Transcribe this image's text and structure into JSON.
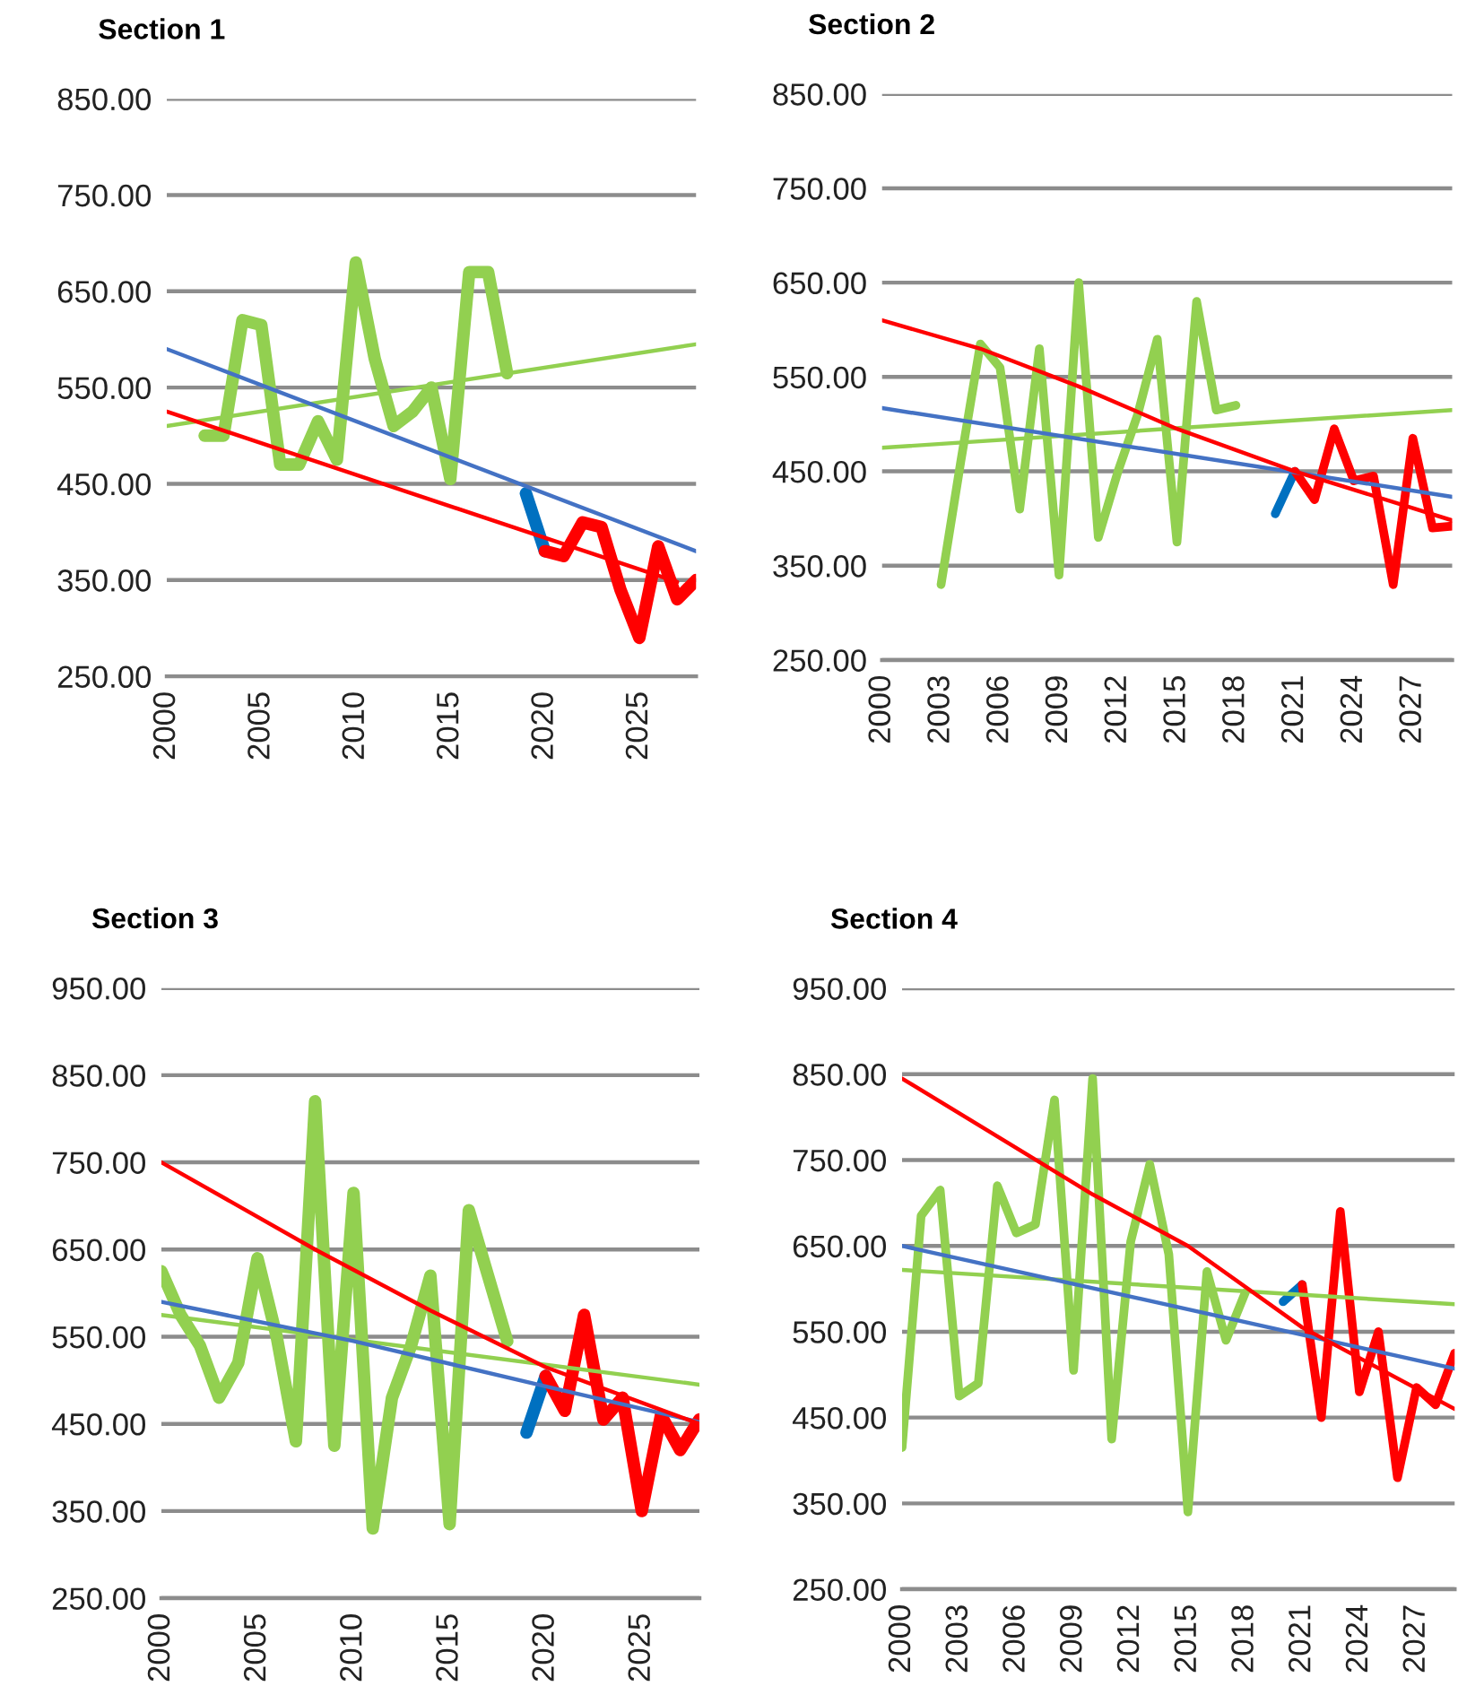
{
  "chart_data": [
    {
      "type": "line",
      "title": "Section 1",
      "x": [
        2002,
        2003,
        2004,
        2005,
        2006,
        2007,
        2008,
        2009,
        2010,
        2011,
        2012,
        2013,
        2014,
        2015,
        2016,
        2017,
        2018,
        2019,
        2020,
        2021,
        2022,
        2023,
        2024,
        2025,
        2026,
        2027,
        2028
      ],
      "xlim": [
        2000,
        2028
      ],
      "xticks": [
        2000,
        2005,
        2010,
        2015,
        2020,
        2025
      ],
      "ylim": [
        250,
        850
      ],
      "yticks": [
        {
          "value": 250,
          "label": "250.00"
        },
        {
          "value": 350,
          "label": "350.00"
        },
        {
          "value": 450,
          "label": "450.00"
        },
        {
          "value": 550,
          "label": "550.00"
        },
        {
          "value": 650,
          "label": "650.00"
        },
        {
          "value": 750,
          "label": "750.00"
        },
        {
          "value": 850,
          "label": "850.00"
        }
      ],
      "grid": "y",
      "legend": false,
      "series": [
        {
          "color": "#92d050",
          "values": [
            500,
            500,
            620,
            615,
            470,
            470,
            515,
            475,
            680,
            580,
            510,
            525,
            550,
            455,
            670,
            670,
            565,
            null,
            null,
            null,
            null,
            null,
            null,
            null,
            null,
            null,
            null
          ]
        },
        {
          "color": "#0070c0",
          "values": [
            null,
            null,
            null,
            null,
            null,
            null,
            null,
            null,
            null,
            null,
            null,
            null,
            null,
            null,
            null,
            null,
            null,
            440,
            380,
            null,
            null,
            null,
            null,
            null,
            null,
            null,
            null
          ]
        },
        {
          "color": "#ff0000",
          "values": [
            null,
            null,
            null,
            null,
            null,
            null,
            null,
            null,
            null,
            null,
            null,
            null,
            null,
            null,
            null,
            null,
            null,
            null,
            380,
            375,
            410,
            405,
            340,
            290,
            385,
            330,
            350
          ]
        },
        {
          "color": "#92d050",
          "x": [
            2000,
            2028
          ],
          "values": [
            510,
            595
          ]
        },
        {
          "color": "#4472c4",
          "x": [
            2000,
            2028
          ],
          "values": [
            590,
            380
          ]
        },
        {
          "color": "#ff0000",
          "x": [
            2000,
            2027
          ],
          "values": [
            525,
            348
          ]
        }
      ]
    },
    {
      "type": "line",
      "title": "Section 2",
      "x": [
        2003,
        2004,
        2005,
        2006,
        2007,
        2008,
        2009,
        2010,
        2011,
        2012,
        2013,
        2014,
        2015,
        2016,
        2017,
        2018,
        2019,
        2020,
        2021,
        2022,
        2023,
        2024,
        2025,
        2026,
        2027,
        2028,
        2029
      ],
      "xlim": [
        2000,
        2029
      ],
      "xticks": [
        2000,
        2003,
        2006,
        2009,
        2012,
        2015,
        2018,
        2021,
        2024,
        2027
      ],
      "ylim": [
        250,
        850
      ],
      "yticks": [
        {
          "value": 250,
          "label": "250.00"
        },
        {
          "value": 350,
          "label": "350.00"
        },
        {
          "value": 450,
          "label": "450.00"
        },
        {
          "value": 550,
          "label": "550.00"
        },
        {
          "value": 650,
          "label": "650.00"
        },
        {
          "value": 750,
          "label": "750.00"
        },
        {
          "value": 850,
          "label": "850.00"
        }
      ],
      "grid": "y",
      "legend": false,
      "series": [
        {
          "color": "#92d050",
          "values": [
            330,
            460,
            585,
            560,
            410,
            580,
            340,
            650,
            380,
            450,
            510,
            590,
            375,
            630,
            515,
            520,
            null,
            null,
            null,
            null,
            null,
            null,
            null,
            null,
            null,
            null,
            null
          ]
        },
        {
          "color": "#0070c0",
          "values": [
            null,
            null,
            null,
            null,
            null,
            null,
            null,
            null,
            null,
            null,
            null,
            null,
            null,
            null,
            null,
            null,
            null,
            405,
            450,
            null,
            null,
            null,
            null,
            null,
            null,
            null,
            null
          ]
        },
        {
          "color": "#ff0000",
          "values": [
            null,
            null,
            null,
            null,
            null,
            null,
            null,
            null,
            null,
            null,
            null,
            null,
            null,
            null,
            null,
            null,
            null,
            null,
            450,
            420,
            495,
            440,
            445,
            330,
            485,
            390,
            392
          ]
        },
        {
          "color": "#92d050",
          "x": [
            2000,
            2029
          ],
          "values": [
            475,
            515
          ]
        },
        {
          "color": "#4472c4",
          "x": [
            2000,
            2029
          ],
          "values": [
            517,
            423
          ]
        },
        {
          "color": "#ff0000",
          "x": [
            2000,
            2005,
            2010,
            2015,
            2021,
            2029
          ],
          "values": [
            610,
            580,
            540,
            495,
            450,
            398
          ]
        }
      ]
    },
    {
      "type": "line",
      "title": "Section 3",
      "x": [
        2000,
        2001,
        2002,
        2003,
        2004,
        2005,
        2006,
        2007,
        2008,
        2009,
        2010,
        2011,
        2012,
        2013,
        2014,
        2015,
        2016,
        2017,
        2018,
        2019,
        2020,
        2021,
        2022,
        2023,
        2024,
        2025,
        2026,
        2027,
        2028
      ],
      "xlim": [
        2000,
        2028
      ],
      "xticks": [
        2000,
        2005,
        2010,
        2015,
        2020,
        2025
      ],
      "ylim": [
        250,
        950
      ],
      "yticks": [
        {
          "value": 250,
          "label": "250.00"
        },
        {
          "value": 350,
          "label": "350.00"
        },
        {
          "value": 450,
          "label": "450.00"
        },
        {
          "value": 550,
          "label": "550.00"
        },
        {
          "value": 650,
          "label": "650.00"
        },
        {
          "value": 750,
          "label": "750.00"
        },
        {
          "value": 850,
          "label": "850.00"
        },
        {
          "value": 950,
          "label": "950.00"
        }
      ],
      "grid": "y",
      "legend": false,
      "series": [
        {
          "color": "#92d050",
          "values": [
            625,
            575,
            540,
            480,
            520,
            640,
            550,
            430,
            820,
            425,
            715,
            330,
            480,
            540,
            620,
            335,
            695,
            620,
            545,
            null,
            null,
            null,
            null,
            null,
            null,
            null,
            null,
            null,
            null
          ]
        },
        {
          "color": "#0070c0",
          "values": [
            null,
            null,
            null,
            null,
            null,
            null,
            null,
            null,
            null,
            null,
            null,
            null,
            null,
            null,
            null,
            null,
            null,
            null,
            null,
            440,
            505,
            null,
            null,
            null,
            null,
            null,
            null,
            null,
            null
          ]
        },
        {
          "color": "#ff0000",
          "values": [
            null,
            null,
            null,
            null,
            null,
            null,
            null,
            null,
            null,
            null,
            null,
            null,
            null,
            null,
            null,
            null,
            null,
            null,
            null,
            null,
            505,
            465,
            575,
            455,
            480,
            350,
            460,
            420,
            455
          ]
        },
        {
          "color": "#92d050",
          "x": [
            2000,
            2028
          ],
          "values": [
            575,
            495
          ]
        },
        {
          "color": "#4472c4",
          "x": [
            2000,
            2010,
            2020,
            2028
          ],
          "values": [
            590,
            545,
            493,
            452
          ]
        },
        {
          "color": "#ff0000",
          "x": [
            2000,
            2008,
            2014,
            2020,
            2028
          ],
          "values": [
            750,
            650,
            580,
            515,
            450
          ]
        }
      ]
    },
    {
      "type": "line",
      "title": "Section 4",
      "x": [
        2000,
        2001,
        2002,
        2003,
        2004,
        2005,
        2006,
        2007,
        2008,
        2009,
        2010,
        2011,
        2012,
        2013,
        2014,
        2015,
        2016,
        2017,
        2018,
        2019,
        2020,
        2021,
        2022,
        2023,
        2024,
        2025,
        2026,
        2027,
        2028,
        2029
      ],
      "xlim": [
        2000,
        2029
      ],
      "xticks": [
        2000,
        2003,
        2006,
        2009,
        2012,
        2015,
        2018,
        2021,
        2024,
        2027
      ],
      "ylim": [
        250,
        950
      ],
      "yticks": [
        {
          "value": 250,
          "label": "250.00"
        },
        {
          "value": 350,
          "label": "350.00"
        },
        {
          "value": 450,
          "label": "450.00"
        },
        {
          "value": 550,
          "label": "550.00"
        },
        {
          "value": 650,
          "label": "650.00"
        },
        {
          "value": 750,
          "label": "750.00"
        },
        {
          "value": 850,
          "label": "850.00"
        },
        {
          "value": 950,
          "label": "950.00"
        }
      ],
      "grid": "y",
      "legend": false,
      "series": [
        {
          "color": "#92d050",
          "values": [
            415,
            685,
            715,
            475,
            490,
            720,
            665,
            675,
            820,
            505,
            845,
            425,
            655,
            745,
            640,
            340,
            620,
            540,
            595,
            null,
            null,
            null,
            null,
            null,
            null,
            null,
            null,
            null,
            null,
            null
          ]
        },
        {
          "color": "#0070c0",
          "values": [
            null,
            null,
            null,
            null,
            null,
            null,
            null,
            null,
            null,
            null,
            null,
            null,
            null,
            null,
            null,
            null,
            null,
            null,
            null,
            null,
            585,
            605,
            null,
            null,
            null,
            null,
            null,
            null,
            null,
            null
          ]
        },
        {
          "color": "#ff0000",
          "values": [
            null,
            null,
            null,
            null,
            null,
            null,
            null,
            null,
            null,
            null,
            null,
            null,
            null,
            null,
            null,
            null,
            null,
            null,
            null,
            null,
            null,
            605,
            450,
            690,
            480,
            550,
            380,
            485,
            465,
            525
          ]
        },
        {
          "color": "#92d050",
          "x": [
            2000,
            2029
          ],
          "values": [
            622,
            582
          ]
        },
        {
          "color": "#4472c4",
          "x": [
            2000,
            2029
          ],
          "values": [
            650,
            507
          ]
        },
        {
          "color": "#ff0000",
          "x": [
            2000,
            2010,
            2015,
            2021,
            2029
          ],
          "values": [
            845,
            710,
            650,
            555,
            460
          ]
        }
      ]
    }
  ]
}
